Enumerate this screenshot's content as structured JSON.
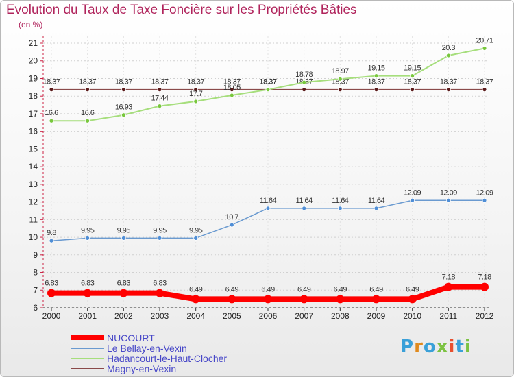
{
  "title": "Evolution du Taux de Taxe Foncière sur les Propriétés Bâties",
  "unit_label": "(en %)",
  "logo": {
    "text": "Proxiti",
    "letters": [
      "P",
      "r",
      "o",
      "x",
      "i",
      "t",
      "i"
    ],
    "colors": [
      "#3aa0d8",
      "#e08a1e",
      "#3aa0d8",
      "#7cc242",
      "#e84f2e",
      "#3aa0d8",
      "#7cc242"
    ]
  },
  "chart_data": {
    "type": "line",
    "title": "Evolution du Taux de Taxe Foncière sur les Propriétés Bâties",
    "ylabel": "(en %)",
    "xlabel": "",
    "x": [
      "2000",
      "2001",
      "2002",
      "2003",
      "2004",
      "2005",
      "2006",
      "2007",
      "2008",
      "2009",
      "2010",
      "2011",
      "2012"
    ],
    "ylim": [
      6,
      21
    ],
    "yticks": [
      6,
      7,
      8,
      9,
      10,
      11,
      12,
      13,
      14,
      15,
      16,
      17,
      18,
      19,
      20,
      21
    ],
    "legend_position": "bottom-left",
    "series": [
      {
        "name": "NUCOURT",
        "color": "#ff0000",
        "marker_color": "#ff0000",
        "values": [
          6.83,
          6.83,
          6.83,
          6.83,
          6.49,
          6.49,
          6.49,
          6.49,
          6.49,
          6.49,
          6.49,
          7.18,
          7.18
        ],
        "labels": [
          "6.83",
          "6.83",
          "6.83",
          "6.83",
          "6.49",
          "6.49",
          "6.49",
          "6.49",
          "6.49",
          "6.49",
          "6.49",
          "7.18",
          "7.18"
        ]
      },
      {
        "name": "Le Bellay-en-Vexin",
        "color": "#6a9ad0",
        "marker_color": "#4f8ed6",
        "values": [
          9.8,
          9.95,
          9.95,
          9.95,
          9.95,
          10.7,
          11.64,
          11.64,
          11.64,
          11.64,
          12.09,
          12.09,
          12.09
        ],
        "labels": [
          "9.8",
          "9.95",
          "9.95",
          "9.95",
          "9.95",
          "10.7",
          "11.64",
          "11.64",
          "11.64",
          "11.64",
          "12.09",
          "12.09",
          "12.09"
        ]
      },
      {
        "name": "Hadancourt-le-Haut-Clocher",
        "color": "#a6de7c",
        "marker_color": "#78c73d",
        "values": [
          16.6,
          16.6,
          16.93,
          17.44,
          17.7,
          18.05,
          18.37,
          18.78,
          18.97,
          19.15,
          19.15,
          20.3,
          20.71
        ],
        "labels": [
          "16.6",
          "16.6",
          "16.93",
          "17.44",
          "17.7",
          "18.05",
          "18.37",
          "18.78",
          "18.97",
          "19.15",
          "19.15",
          "20.3",
          "20.71"
        ]
      },
      {
        "name": "Magny-en-Vexin",
        "color": "#8a4a4a",
        "marker_color": "#5a1a1a",
        "values": [
          18.37,
          18.37,
          18.37,
          18.37,
          18.37,
          18.37,
          18.37,
          18.37,
          18.37,
          18.37,
          18.37,
          18.37,
          18.37
        ],
        "labels": [
          "18.37",
          "18.37",
          "18.37",
          "18.37",
          "18.37",
          "18.37",
          "18.37",
          "18.37",
          "18.37",
          "18.37",
          "18.37",
          "18.37",
          "18.37"
        ]
      }
    ]
  }
}
